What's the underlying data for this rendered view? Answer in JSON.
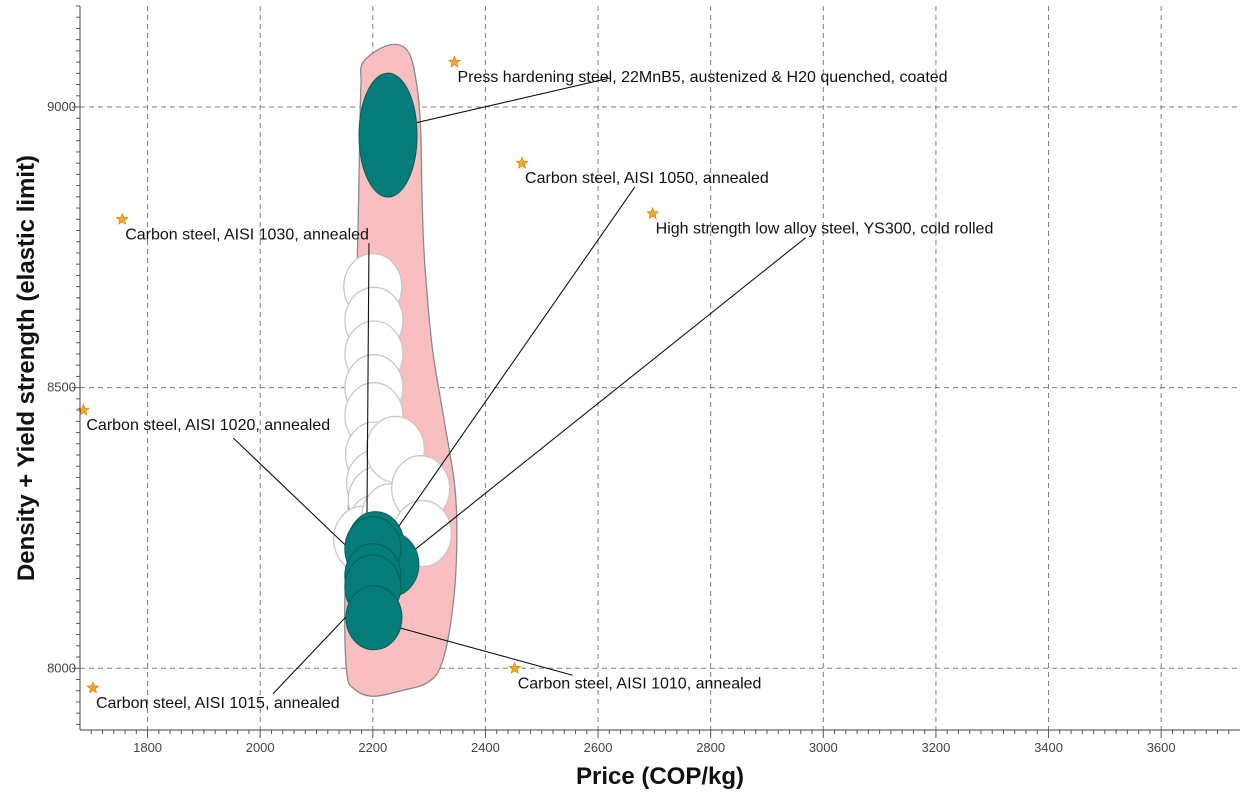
{
  "chart_data": {
    "type": "scatter",
    "xlabel": "Price (COP/kg)",
    "ylabel": "Density + Yield strength (elastic limit)",
    "xlim": [
      1680,
      3740
    ],
    "ylim": [
      7890,
      9180
    ],
    "x_ticks": [
      1800,
      2000,
      2200,
      2400,
      2600,
      2800,
      3000,
      3200,
      3400,
      3600
    ],
    "y_ticks": [
      8000,
      8500,
      9000
    ],
    "grid": true,
    "colors": {
      "highlight": "#037c7a",
      "other": "#ffffff",
      "other_stroke": "#c8c8c8",
      "envelope_fill": "#f9bfc0",
      "envelope_stroke": "#8a8a8a",
      "star": "#f5a623"
    },
    "envelope": [
      [
        2183,
        9080
      ],
      [
        2227,
        9110
      ],
      [
        2262,
        9100
      ],
      [
        2278,
        9040
      ],
      [
        2285,
        8960
      ],
      [
        2287,
        8860
      ],
      [
        2290,
        8760
      ],
      [
        2297,
        8660
      ],
      [
        2307,
        8560
      ],
      [
        2327,
        8440
      ],
      [
        2346,
        8320
      ],
      [
        2349,
        8210
      ],
      [
        2341,
        8100
      ],
      [
        2323,
        8010
      ],
      [
        2298,
        7975
      ],
      [
        2250,
        7960
      ],
      [
        2200,
        7950
      ],
      [
        2167,
        7963
      ],
      [
        2154,
        7990
      ],
      [
        2150,
        8100
      ],
      [
        2154,
        8220
      ],
      [
        2161,
        8400
      ],
      [
        2169,
        8600
      ],
      [
        2174,
        8800
      ],
      [
        2177,
        8960
      ],
      [
        2179,
        9040
      ]
    ],
    "other_materials": [
      {
        "x": 2200,
        "y": 8680
      },
      {
        "x": 2202,
        "y": 8620
      },
      {
        "x": 2202,
        "y": 8560
      },
      {
        "x": 2202,
        "y": 8500
      },
      {
        "x": 2202,
        "y": 8450
      },
      {
        "x": 2203,
        "y": 8380
      },
      {
        "x": 2205,
        "y": 8330
      },
      {
        "x": 2208,
        "y": 8300
      },
      {
        "x": 2205,
        "y": 8250
      },
      {
        "x": 2182,
        "y": 8230
      },
      {
        "x": 2232,
        "y": 8270
      },
      {
        "x": 2240,
        "y": 8390
      },
      {
        "x": 2285,
        "y": 8320
      },
      {
        "x": 2288,
        "y": 8240
      },
      {
        "x": 2220,
        "y": 8190
      }
    ],
    "highlighted_materials": [
      {
        "name": "Press hardening steel, 22MnB5, austenized & H20 quenched, coated",
        "x": 2227,
        "y": 8950,
        "label_x": 2345,
        "label_y": 9080
      },
      {
        "name": "Carbon steel, AISI 1050, annealed",
        "x": 2205,
        "y": 8222,
        "label_x": 2465,
        "label_y": 8900
      },
      {
        "name": "High strength low alloy steel, YS300, cold rolled",
        "x": 2232,
        "y": 8185,
        "label_x": 2697,
        "label_y": 8810
      },
      {
        "name": "Carbon steel, AISI 1030, annealed",
        "x": 2200,
        "y": 8213,
        "label_x": 1755,
        "label_y": 8800
      },
      {
        "name": "Carbon steel, AISI 1020, annealed",
        "x": 2200,
        "y": 8165,
        "label_x": 1686,
        "label_y": 8460
      },
      {
        "name": "Carbon steel, AISI 1015, annealed",
        "x": 2200,
        "y": 8145,
        "label_x": 1703,
        "label_y": 7965
      },
      {
        "name": "Carbon steel, AISI 1010, annealed",
        "x": 2202,
        "y": 8090,
        "label_x": 2452,
        "label_y": 8000
      }
    ]
  }
}
